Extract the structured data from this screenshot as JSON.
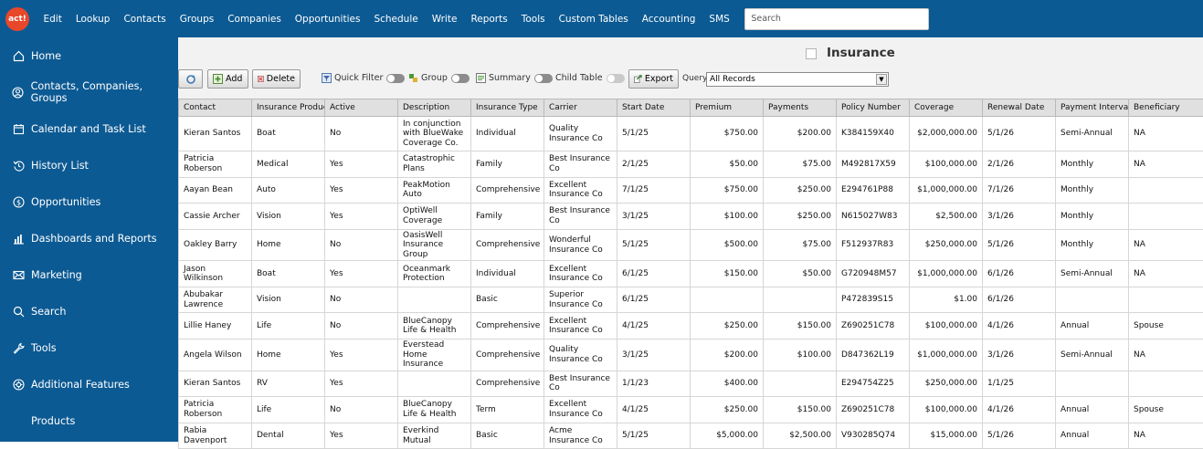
{
  "app": {
    "logo_text": "act!",
    "brand_color": "#0c5a93"
  },
  "menu": [
    "Edit",
    "Lookup",
    "Contacts",
    "Groups",
    "Companies",
    "Opportunities",
    "Schedule",
    "Write",
    "Reports",
    "Tools",
    "Custom Tables",
    "Accounting",
    "SMS"
  ],
  "search": {
    "placeholder": "Search"
  },
  "sidebar": {
    "items": [
      {
        "label": "Home",
        "icon": "home-icon"
      },
      {
        "label": "Contacts, Companies, Groups",
        "icon": "user-icon"
      },
      {
        "label": "Calendar and Task List",
        "icon": "calendar-icon"
      },
      {
        "label": "History List",
        "icon": "history-icon"
      },
      {
        "label": "Opportunities",
        "icon": "dollar-icon"
      },
      {
        "label": "Dashboards and Reports",
        "icon": "bar-chart-icon"
      },
      {
        "label": "Marketing",
        "icon": "mail-icon"
      },
      {
        "label": "Search",
        "icon": "search-icon"
      },
      {
        "label": "Tools",
        "icon": "wrench-icon"
      },
      {
        "label": "Additional Features",
        "icon": "gear-icon"
      },
      {
        "label": "Products",
        "icon": ""
      }
    ]
  },
  "page": {
    "title": "Insurance"
  },
  "toolbar": {
    "add_label": "Add",
    "delete_label": "Delete",
    "quick_filter_label": "Quick Filter",
    "group_label": "Group",
    "summary_label": "Summary",
    "child_table_label": "Child Table",
    "export_label": "Export",
    "query_label": "Query",
    "query_value": "All Records"
  },
  "table": {
    "columns": [
      "Contact",
      "Insurance Product",
      "Active",
      "Description",
      "Insurance Type",
      "Carrier",
      "Start Date",
      "Premium",
      "Payments",
      "Policy Number",
      "Coverage",
      "Renewal Date",
      "Payment Interval",
      "Beneficiary"
    ],
    "rows": [
      [
        "Kieran Santos",
        "Boat",
        "No",
        "In conjunction with BlueWake Coverage Co.",
        "Individual",
        "Quality Insurance Co",
        "5/1/25",
        "$750.00",
        "$200.00",
        "K384159X40",
        "$2,000,000.00",
        "5/1/26",
        "Semi-Annual",
        "NA"
      ],
      [
        "Patricia Roberson",
        "Medical",
        "Yes",
        "Catastrophic Plans",
        "Family",
        "Best Insurance Co",
        "2/1/25",
        "$50.00",
        "$75.00",
        "M492817X59",
        "$100,000.00",
        "2/1/26",
        "Monthly",
        "NA"
      ],
      [
        "Aayan Bean",
        "Auto",
        "Yes",
        "PeakMotion Auto",
        "Comprehensive",
        "Excellent Insurance Co",
        "7/1/25",
        "$750.00",
        "$250.00",
        "E294761P88",
        "$1,000,000.00",
        "7/1/26",
        "Monthly",
        ""
      ],
      [
        "Cassie Archer",
        "Vision",
        "Yes",
        "OptiWell Coverage",
        "Family",
        "Best Insurance Co",
        "3/1/25",
        "$100.00",
        "$250.00",
        "N615027W83",
        "$2,500.00",
        "3/1/26",
        "Monthly",
        ""
      ],
      [
        "Oakley Barry",
        "Home",
        "No",
        "OasisWell Insurance Group",
        "Comprehensive",
        "Wonderful Insurance Co",
        "5/1/25",
        "$500.00",
        "$75.00",
        "F512937R83",
        "$250,000.00",
        "5/1/26",
        "Monthly",
        "NA"
      ],
      [
        "Jason Wilkinson",
        "Boat",
        "Yes",
        "Oceanmark Protection",
        "Individual",
        "Excellent Insurance Co",
        "6/1/25",
        "$150.00",
        "$50.00",
        "G720948M57",
        "$1,000,000.00",
        "6/1/26",
        "Semi-Annual",
        "NA"
      ],
      [
        "Abubakar Lawrence",
        "Vision",
        "No",
        "",
        "Basic",
        "Superior Insurance Co",
        "6/1/25",
        "",
        "",
        "P472839S15",
        "$1.00",
        "6/1/26",
        "",
        ""
      ],
      [
        "Lillie Haney",
        "Life",
        "No",
        "BlueCanopy Life & Health",
        "Comprehensive",
        "Excellent Insurance Co",
        "4/1/25",
        "$250.00",
        "$150.00",
        "Z690251C78",
        "$100,000.00",
        "4/1/26",
        "Annual",
        "Spouse"
      ],
      [
        "Angela Wilson",
        "Home",
        "Yes",
        "Everstead Home Insurance",
        "Comprehensive",
        "Quality Insurance Co",
        "3/1/25",
        "$200.00",
        "$100.00",
        "D847362L19",
        "$1,000,000.00",
        "3/1/26",
        "Semi-Annual",
        "NA"
      ],
      [
        "Kieran Santos",
        "RV",
        "Yes",
        "",
        "Comprehensive",
        "Best Insurance Co",
        "1/1/23",
        "$400.00",
        "",
        "E294754Z25",
        "$250,000.00",
        "1/1/25",
        "",
        ""
      ],
      [
        "Patricia Roberson",
        "Life",
        "No",
        "BlueCanopy Life & Health",
        "Term",
        "Excellent Insurance Co",
        "4/1/25",
        "$250.00",
        "$150.00",
        "Z690251C78",
        "$100,000.00",
        "4/1/26",
        "Annual",
        "Spouse"
      ],
      [
        "Rabia Davenport",
        "Dental",
        "Yes",
        "Everkind Mutual",
        "Basic",
        "Acme Insurance Co",
        "5/1/25",
        "$5,000.00",
        "$2,500.00",
        "V930285Q74",
        "$15,000.00",
        "5/1/26",
        "Annual",
        "NA"
      ]
    ]
  }
}
